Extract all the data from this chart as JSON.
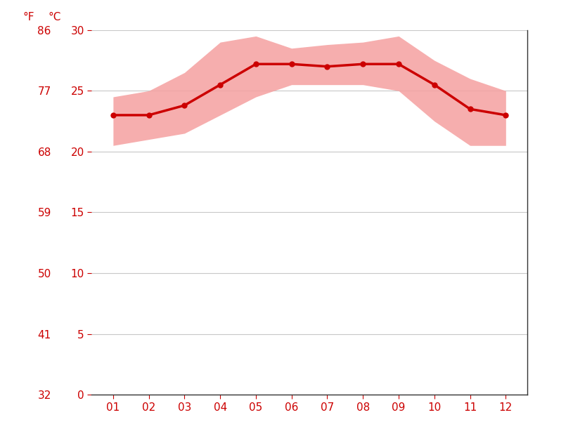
{
  "months": [
    1,
    2,
    3,
    4,
    5,
    6,
    7,
    8,
    9,
    10,
    11,
    12
  ],
  "month_labels": [
    "01",
    "02",
    "03",
    "04",
    "05",
    "06",
    "07",
    "08",
    "09",
    "10",
    "11",
    "12"
  ],
  "mean_temp_c": [
    23.0,
    23.0,
    23.8,
    25.5,
    27.2,
    27.2,
    27.0,
    27.2,
    27.2,
    25.5,
    23.5,
    23.0
  ],
  "max_temp_c": [
    24.5,
    25.0,
    26.5,
    29.0,
    29.5,
    28.5,
    28.8,
    29.0,
    29.5,
    27.5,
    26.0,
    25.0
  ],
  "min_temp_c": [
    20.5,
    21.0,
    21.5,
    23.0,
    24.5,
    25.5,
    25.5,
    25.5,
    25.0,
    22.5,
    20.5,
    20.5
  ],
  "y_ticks_c": [
    0,
    5,
    10,
    15,
    20,
    25,
    30
  ],
  "y_ticks_f": [
    32,
    41,
    50,
    59,
    68,
    77,
    86
  ],
  "ylim_c": [
    0,
    30
  ],
  "xlim": [
    0.4,
    12.6
  ],
  "line_color": "#cc0000",
  "fill_color": "#f5a0a0",
  "fill_alpha": 0.85,
  "grid_color": "#c8c8c8",
  "text_color": "#cc0000",
  "spine_color": "#333333",
  "background_color": "#ffffff",
  "marker": "o",
  "marker_size": 5,
  "line_width": 2.5,
  "label_fontsize": 11,
  "tick_fontsize": 11
}
